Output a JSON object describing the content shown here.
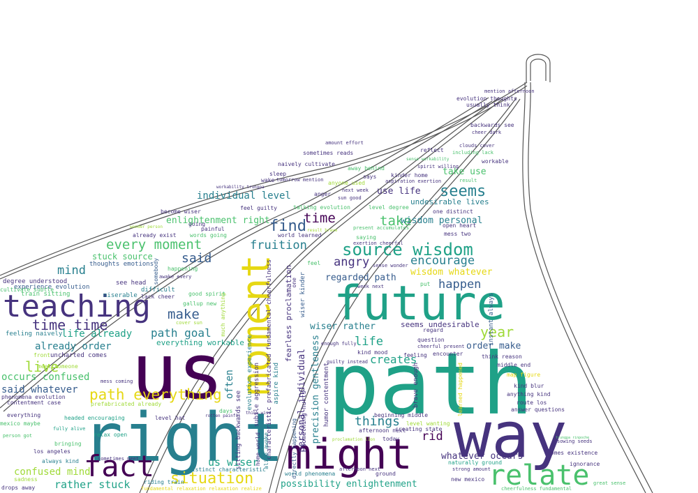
{
  "palette": {
    "dark_purple": "#440154",
    "indigo": "#46337e",
    "slate_blue": "#365c8d",
    "teal": "#277f8e",
    "green_teal": "#1fa187",
    "green": "#4ac16d",
    "lime": "#a0da39",
    "yellow": "#e6d814",
    "outline": "#555555"
  },
  "words": {
    "us": "us",
    "path": "path",
    "right": "right",
    "way": "way",
    "future": "future",
    "moment": "moment",
    "teaching": "teaching",
    "might": "might",
    "fact": "fact",
    "relate": "relate",
    "source_wisdom": "source wisdom",
    "situation": "situation",
    "every_moment": "every moment",
    "path_everything": "path everything",
    "seems": "seems",
    "find": "find",
    "time": "time",
    "time_time": "time time",
    "year": "year",
    "make": "make",
    "take": "take",
    "angry": "angry",
    "mind": "mind",
    "live": "live",
    "said": "said",
    "fruition": "fruition",
    "things": "things",
    "happen": "happen",
    "life": "life",
    "creates": "creates",
    "encourage": "encourage",
    "rid": "rid",
    "us_wiser": "us wiser",
    "relate_small": "rather stuck",
    "path_goal": "path goal",
    "life_already": "life already",
    "already_order": "already order",
    "confused_mind": "confused mind",
    "occurs_confused": "occurs confused",
    "said_whatever": "said whatever",
    "individual_level": "individual level",
    "enlightenment_right": "enlightenment right",
    "wisdom_personal": "wisdom personal",
    "wisdom_whatever": "wisdom whatever",
    "regarded_path": "regarded path",
    "wiser_rather": "wiser rather",
    "order_make": "order make",
    "whatever_occurs": "whatever occurs",
    "possibility_enlightenment": "possibility enlightenment",
    "stuck_source": "stuck source",
    "use_life": "use life",
    "take_use": "take use",
    "undesirable_lives": "undesirable lives",
    "often": "often",
    "moment_small": "everything workable",
    "seems_undesirable": "seems undesirable",
    "personal_individual": "personal individual",
    "precision_gentleness": "precision gentleness",
    "characteristic": "characteristic prefabricated fundamental cheerfulness",
    "fearless": "fearless proclamation",
    "evolution_experience": "evolution experience",
    "sitting_backwards": "sitting backwards see",
    "subtle_aggression": "subtle aggression",
    "aspire_kind": "aspire kind",
    "humor_contentment": "humor contentment",
    "something_hurts": "something hurts",
    "wiser_kinder": "wiser kinder",
    "brave_enough": "brave enough",
    "learned_happened": "learned happened",
    "instant_always": "instant always",
    "somebody": "somebody",
    "much_anything": "much anything",
    "directly_happening": "directly happening",
    "alive_awake": "alive awake",
    "home_world": "home world",
    "one": "one",
    "experience_evolution": "experience evolution",
    "train_sitting": "train sitting",
    "thoughts_emotions": "thoughts emotions",
    "see_head": "see head",
    "miserable": "miserable",
    "difficult": "difficult",
    "lack_cheer": "lack cheer",
    "good_spirit": "good spirit",
    "gallup_new": "gallup new",
    "cover_sun": "cover sun",
    "happening": "happening",
    "awake_every": "awake every",
    "feeling_naively": "feeling naively",
    "degree_understood": "degree understood",
    "uncharted_comes": "uncharted comes",
    "front": "front",
    "cultivate_subtle": "cultivate subtle",
    "meet_someone": "meet someone",
    "mess_coming": "mess coming",
    "prefabricated_already": "prefabricated already",
    "phenomena_evolution": "phenomena evolution",
    "contentment_case": "contentment case",
    "everything": "everything",
    "headed_encouraging": "headed encouraging",
    "mexico_maybe": "mexico maybe",
    "fully_alive": "fully alive",
    "person_got": "person got",
    "relax_open": "relax open",
    "bringing": "bringing",
    "los_angeles": "los angeles",
    "always_kind": "always kind",
    "sometimes_meet": "sometimes meet",
    "sadness": "sadness",
    "drops_away": "drops away",
    "riding_train": "riding train",
    "distinct_characteristic": "distinct characteristic",
    "level_hat": "level hat",
    "rotten_painful": "rotten painful",
    "days": "days",
    "think_wise": "think wise",
    "fundamental_relaxation": "fundamental relaxation relaxation realize",
    "world_phenomena": "world phenomena",
    "ground": "ground",
    "afternoon_next": "afternoon next",
    "proclamation_lion": "proclamation lion",
    "today": "today",
    "creating_state": "creating state",
    "level_wanting": "level wanting",
    "beginning_middle": "beginning middle",
    "kind_mood": "kind mood",
    "guilty_instead": "guilty instead",
    "enough_fully": "enough fully",
    "question": "question",
    "cheerful_present": "cheerful present",
    "encounter": "encounter",
    "feeling": "feeling",
    "think_reason": "think reason",
    "middle_end": "middle end",
    "map_figure": "map figure",
    "kind_blur": "kind blur",
    "anything_kind": "anything kind",
    "route_los": "route los",
    "answer_questions": "answer questions",
    "sowing_seeds": "sowing seeds",
    "comes_existence": "comes existence",
    "ignorance": "ignorance",
    "naturally_ground": "naturally ground",
    "strong_amount": "strong amount",
    "new_mexico": "new mexico",
    "great_sense": "great sense",
    "cheerfulness_fundamental": "cheerfulness fundamental",
    "regard": "regard",
    "put": "put",
    "week_next": "week next",
    "sense_wonder": "sense wonder",
    "exertion_cheerful": "exertion cheerful",
    "saying": "saying",
    "mess_two": "mess two",
    "open_heart": "open heart",
    "one_distinct": "one distinct",
    "present_accumulates": "present accumulates",
    "result_brave": "result brave",
    "level_degree": "level degree",
    "talking_evolution": "talking evolution",
    "feel_guilty": "feel guilty",
    "become_wiser": "become wiser",
    "going": "going",
    "painful": "painful",
    "words_going": "words going",
    "already_exist": "already exist",
    "wonder_person": "wonder person",
    "world_learned": "world learned",
    "sleep": "sleep",
    "wake": "wake",
    "tomorrow_mention": "tomorrow mention",
    "workability_trungpa": "workability trungpa",
    "naively_cultivate": "naively cultivate",
    "sometimes_reads": "sometimes reads",
    "amount_effort": "amount effort",
    "away_behind": "away behind",
    "says": "says",
    "anyone_used": "anyone used",
    "anger": "anger",
    "next_week": "next week",
    "sun_good": "sun good",
    "aspiration_exertion": "aspiration exertion",
    "kinder_home": "kinder home",
    "spirit_willing": "spirit willing",
    "sense_workability": "sense workability",
    "reflect": "reflect",
    "result": "result",
    "including_lack": "including lack",
    "clouds_cover": "clouds cover",
    "workable": "workable",
    "backwards_see": "backwards see",
    "cheer_dark": "cheer dark",
    "usually_think": "usually think",
    "evolution_thoughts": "evolution thoughts",
    "mention_afternoon": "mention afternoon",
    "trungpa_rinpoche": "trungpa rinpoche",
    "feel": "feel"
  }
}
